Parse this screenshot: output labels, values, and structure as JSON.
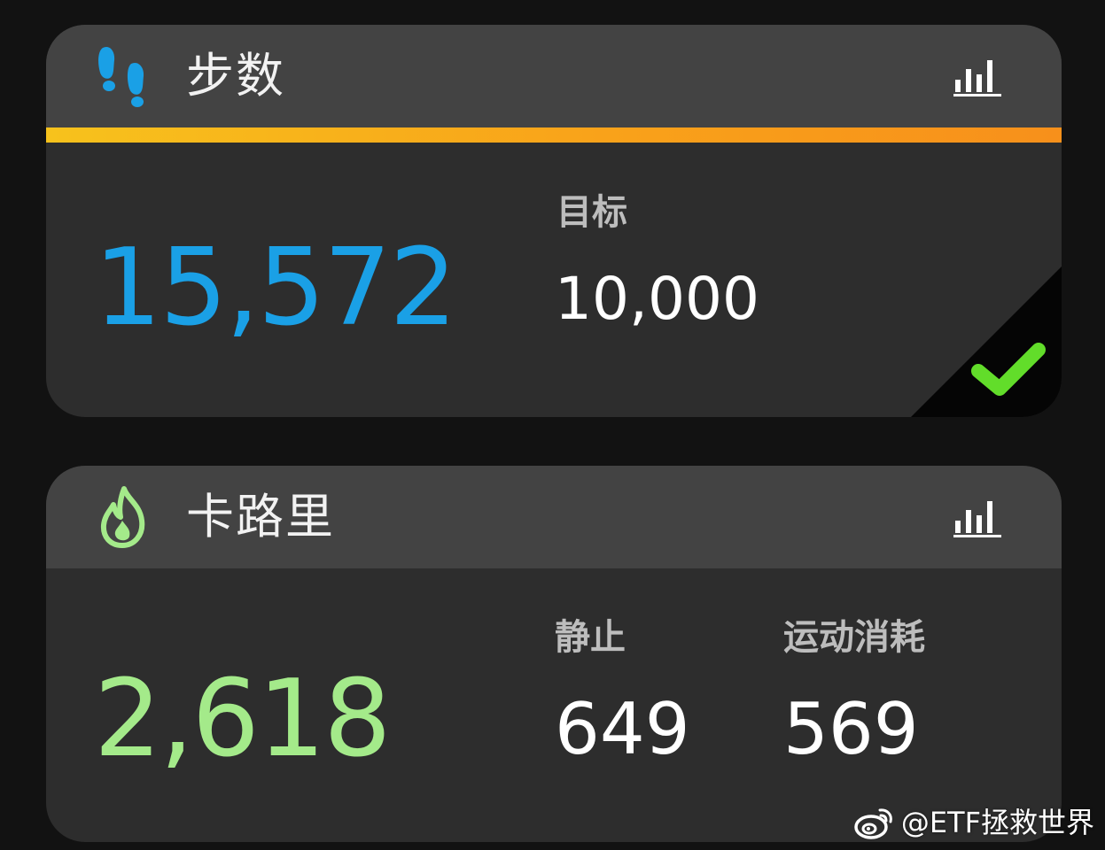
{
  "colors": {
    "background": "#121212",
    "card": "#2d2d2d",
    "card_header": "#434343",
    "steps_accent": "#1aa0e6",
    "goal_bar": "#f7a81b",
    "goal_check": "#62dd2a",
    "calories_accent": "#a4ea8a"
  },
  "steps_card": {
    "icon": "footsteps-icon",
    "title": "步数",
    "chart_icon": "bar-chart-icon",
    "value": "15,572",
    "goal_progress_fraction": 1.0,
    "goal_label": "目标",
    "goal_value": "10,000",
    "goal_met_icon": "checkmark-icon"
  },
  "calories_card": {
    "icon": "flame-icon",
    "title": "卡路里",
    "chart_icon": "bar-chart-icon",
    "value": "2,618",
    "resting_label": "静止",
    "resting_value": "649",
    "active_label": "运动消耗",
    "active_value": "569"
  },
  "watermark": {
    "logo": "weibo-logo",
    "text": "@ETF拯救世界"
  }
}
